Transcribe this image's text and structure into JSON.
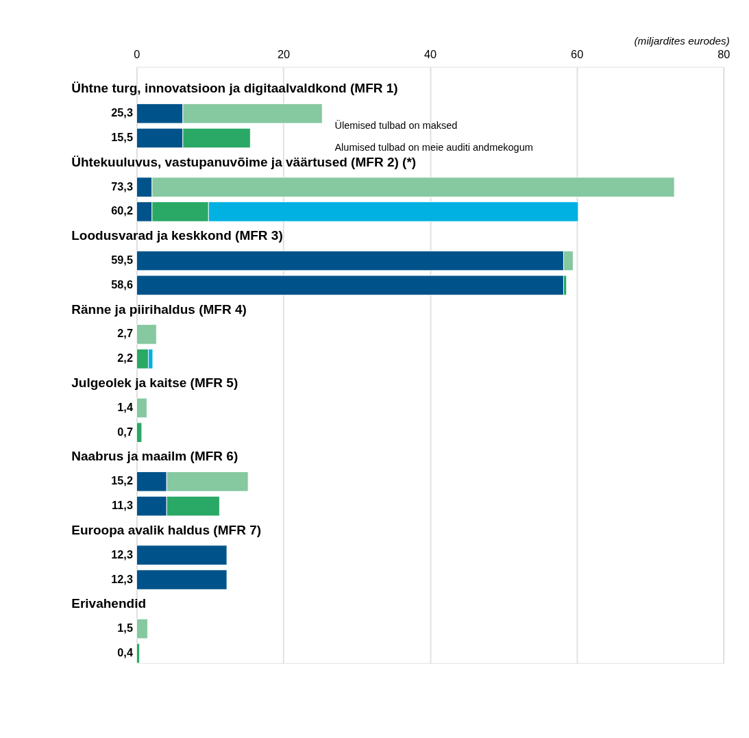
{
  "chart_data": {
    "type": "bar",
    "orientation": "horizontal",
    "stacked": true,
    "xlabel": "(miljardites eurodes)",
    "categories": [
      null,
      null,
      null,
      null,
      null,
      null,
      null,
      null,
      null,
      null,
      null,
      null,
      null,
      null,
      null,
      null
    ],
    "series": [
      {
        "color": "#00538a",
        "values": [
          6.3,
          6.3,
          2.1,
          2.1,
          58.2,
          58.2,
          null,
          null,
          null,
          null,
          4.1,
          4.1,
          12.3,
          12.3,
          null,
          null
        ]
      },
      {
        "color": "#86c8a0",
        "values": [
          19.0,
          null,
          71.2,
          null,
          1.3,
          null,
          2.7,
          null,
          1.4,
          null,
          11.1,
          null,
          null,
          null,
          1.5,
          null
        ]
      },
      {
        "color": "#2aa866",
        "values": [
          null,
          9.2,
          null,
          7.7,
          null,
          0.4,
          null,
          1.6,
          null,
          0.7,
          null,
          7.2,
          null,
          null,
          null,
          0.4
        ]
      },
      {
        "color": "#00b1e1",
        "values": [
          null,
          null,
          null,
          50.4,
          null,
          null,
          null,
          0.6,
          null,
          null,
          null,
          null,
          null,
          null,
          null,
          null
        ]
      }
    ],
    "totals": [
      "25,3",
      "15,5",
      "73,3",
      "60,2",
      "59,5",
      "58,6",
      "2,7",
      "2,2",
      "1,4",
      "0,7",
      "15,2",
      "11,3",
      "12,3",
      "12,3",
      "1,5",
      "0,4"
    ],
    "xlim": [
      0,
      80
    ],
    "xticks": [
      0,
      20,
      40,
      60,
      80
    ],
    "grid": "x",
    "annotations": [
      "Ühtne turg, innovatsioon ja digitaalvaldkond (MFR 1)",
      "Ühtekuuluvus, vastupanuvõime ja väärtused (MFR 2) (*)",
      "Loodusvarad ja keskkond (MFR 3)",
      "Ränne ja piirihaldus (MFR 4)",
      "Julgeolek ja kaitse (MFR 5)",
      "Naabrus ja maailm (MFR 6)",
      "Euroopa avalik haldus (MFR 7)",
      "Erivahendid",
      "Ülemised tulbad on maksed",
      "Alumised tulbad on meie auditi andmekogum"
    ]
  }
}
